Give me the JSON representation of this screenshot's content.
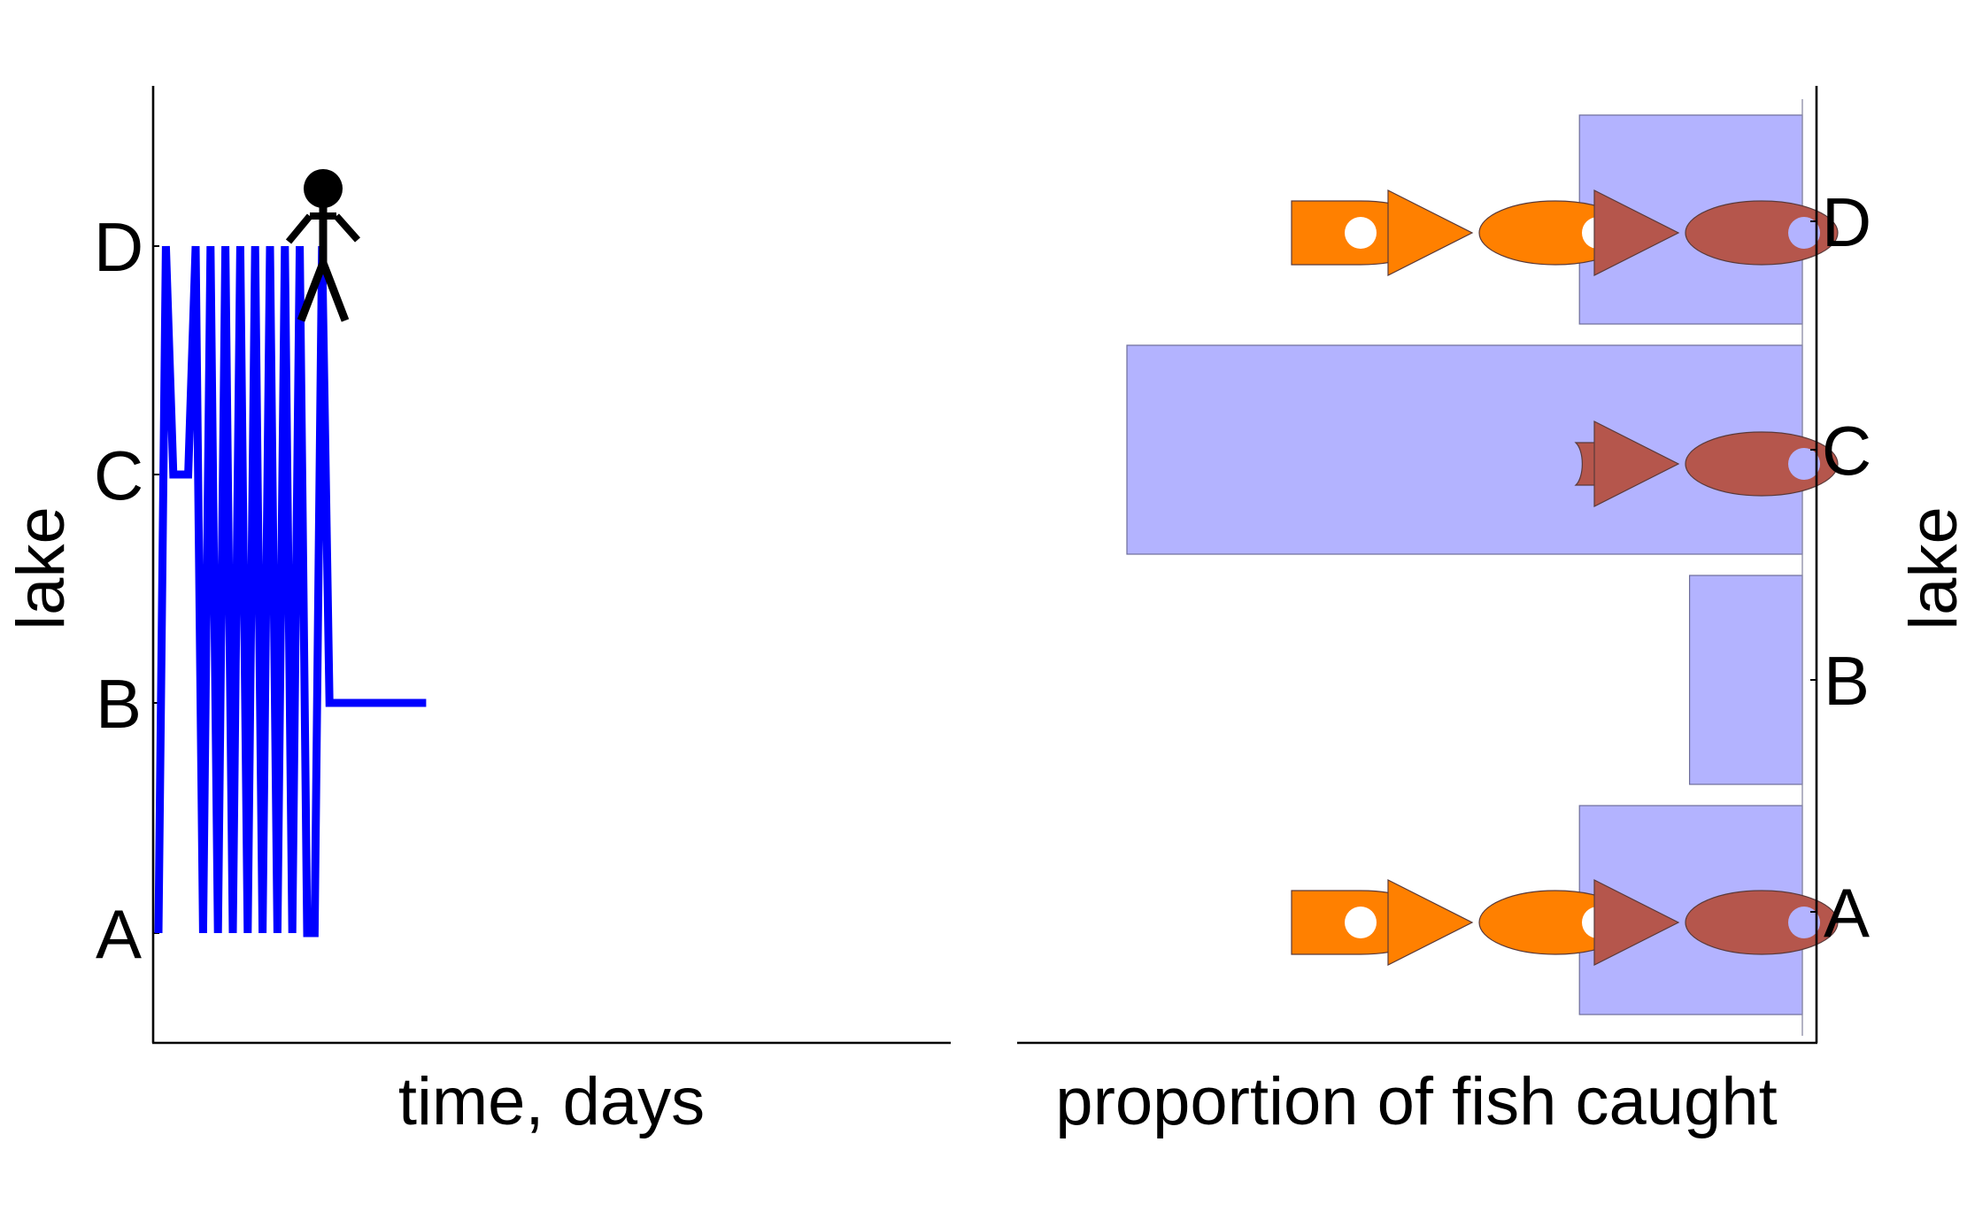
{
  "chart_data": [
    {
      "type": "line",
      "xlabel": "time, days",
      "ylabel": "lake",
      "categories": [
        "A",
        "B",
        "C",
        "D"
      ],
      "series": [
        {
          "color": "#0000ff",
          "x": [
            0,
            1,
            2,
            3,
            4,
            5,
            6,
            7,
            8,
            9,
            10,
            11,
            12,
            13,
            14,
            15,
            16,
            17,
            18,
            19,
            20,
            21,
            22,
            23,
            24,
            25,
            26,
            27,
            28,
            29,
            30,
            31,
            32,
            33,
            34,
            35,
            36
          ],
          "y": [
            "A",
            "D",
            "C",
            "C",
            "C",
            "D",
            "A",
            "D",
            "A",
            "D",
            "A",
            "D",
            "A",
            "D",
            "A",
            "D",
            "A",
            "D",
            "A",
            "D",
            "A",
            "A",
            "D",
            "B",
            "B",
            "B",
            "B",
            "B",
            "B",
            "B",
            "B",
            "B",
            "B",
            "B",
            "B",
            "B",
            "B"
          ]
        }
      ],
      "annotation_icon": "person-icon"
    },
    {
      "type": "bar",
      "orientation": "horizontal",
      "xlabel": "proportion of fish caught",
      "ylabel": "lake",
      "categories": [
        "A",
        "B",
        "C",
        "D"
      ],
      "values": [
        0.33,
        0.167,
        1.0,
        0.33
      ],
      "xlim": [
        0,
        1
      ],
      "bar_color": "#b3b3ff",
      "fish_icons": [
        {
          "lake": "A",
          "caught_color": "#b5564c",
          "previous_color": "#ff8000",
          "previous_count": 2
        },
        {
          "lake": "C",
          "caught_color": "#b5564c",
          "previous_color": "#ff8000",
          "previous_count": 0
        },
        {
          "lake": "D",
          "caught_color": "#b5564c",
          "previous_color": "#ff8000",
          "previous_count": 2
        }
      ]
    }
  ]
}
